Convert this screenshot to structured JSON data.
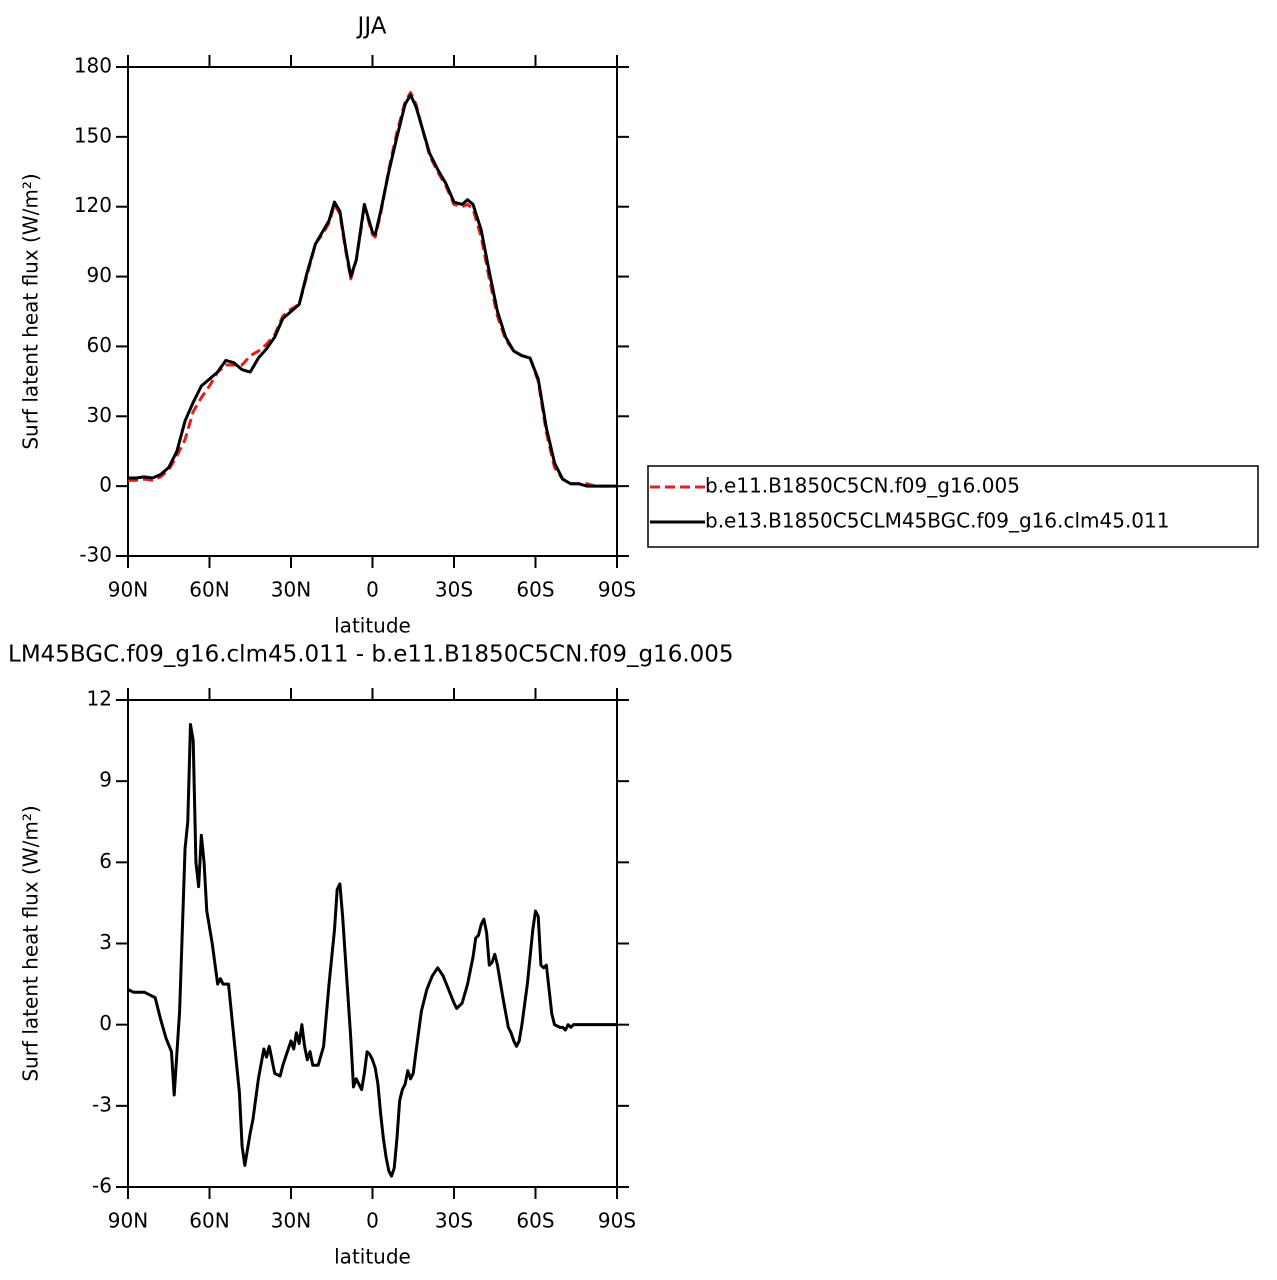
{
  "chart_data": [
    {
      "type": "line",
      "title": "JJA",
      "xlabel": "latitude",
      "ylabel": "Surf latent heat flux (W/m²)",
      "x": [
        90,
        87,
        84,
        81,
        78,
        75,
        72,
        69,
        66,
        63,
        60,
        57,
        54,
        51,
        48,
        45,
        42,
        39,
        36,
        33,
        30,
        27,
        24,
        21,
        18,
        16,
        14,
        12,
        10,
        8,
        6,
        4,
        3,
        1,
        0,
        -1,
        -3,
        -6,
        -9,
        -12,
        -14,
        -16,
        -18,
        -21,
        -24,
        -27,
        -30,
        -33,
        -35,
        -37,
        -40,
        -43,
        -46,
        -49,
        -52,
        -55,
        -58,
        -61,
        -64,
        -67,
        -70,
        -73,
        -76,
        -79,
        -82,
        -85,
        -88,
        -90
      ],
      "series": [
        {
          "name": "b.e11.B1850C5CN.f09_g16.005",
          "color": "#e0201b",
          "style": "dashed",
          "values": [
            2.5,
            2.5,
            3,
            2.5,
            4,
            7,
            13,
            20,
            32,
            38,
            43,
            49,
            52,
            52,
            52,
            56,
            58,
            61,
            65,
            73,
            76,
            78,
            91,
            104,
            109,
            113,
            121,
            117,
            102,
            89,
            97,
            112,
            121,
            112,
            108,
            107,
            117,
            136,
            152,
            165,
            169,
            164,
            155,
            142,
            135,
            129,
            121,
            120,
            121,
            119,
            107,
            89,
            73,
            63,
            58,
            56,
            55,
            45,
            23,
            8,
            3,
            1,
            1,
            1,
            0,
            0,
            0,
            0
          ]
        },
        {
          "name": "b.e13.B1850C5CLM45BGC.f09_g16.clm45.011",
          "color": "#000000",
          "style": "solid",
          "values": [
            3.5,
            3.5,
            4,
            3.5,
            5,
            8,
            15,
            28,
            36,
            43,
            46,
            49,
            54,
            53,
            50,
            49,
            55,
            59,
            64,
            72,
            75,
            78,
            92,
            104,
            110,
            114,
            122,
            118,
            103,
            90,
            97,
            113,
            121,
            113,
            109,
            108,
            118,
            135,
            150,
            164,
            168,
            163,
            155,
            143,
            136,
            130,
            122,
            121,
            123,
            121,
            110,
            92,
            75,
            64,
            58,
            56,
            55,
            46,
            25,
            10,
            3,
            1,
            1,
            0,
            0,
            0,
            0,
            0
          ]
        }
      ],
      "xlim": [
        90,
        -90
      ],
      "xticks": [
        {
          "value": 90,
          "label": "90N"
        },
        {
          "value": 60,
          "label": "60N"
        },
        {
          "value": 30,
          "label": "30N"
        },
        0,
        {
          "value": -30,
          "label": "30S"
        },
        {
          "value": -60,
          "label": "60S"
        },
        {
          "value": -90,
          "label": "90S"
        }
      ],
      "ylim": [
        -30,
        180
      ],
      "yticks": [
        -30,
        0,
        30,
        60,
        90,
        120,
        150,
        180
      ],
      "grid": false,
      "legend": "right"
    },
    {
      "type": "line",
      "title": "LM45BGC.f09_g16.clm45.011 - b.e11.B1850C5CN.f09_g16.005",
      "xlabel": "latitude",
      "ylabel": "Surf latent heat flux (W/m²)",
      "x": [
        90,
        88,
        86,
        84,
        82,
        80,
        78,
        76,
        74,
        73,
        71,
        69,
        68,
        67,
        66,
        65,
        64,
        63,
        62,
        61,
        59,
        57,
        56,
        55,
        53,
        51,
        49,
        48,
        47,
        45,
        44,
        42,
        40,
        39,
        38,
        37,
        36,
        34,
        33,
        31,
        30,
        29,
        28,
        27,
        26,
        25,
        24,
        23,
        22,
        20,
        18,
        16,
        14,
        13,
        12,
        11,
        10,
        9,
        8,
        7,
        6,
        5,
        4,
        3,
        2,
        1,
        0,
        -1,
        -2,
        -3,
        -4,
        -5,
        -6,
        -7,
        -8,
        -9,
        -10,
        -11,
        -12,
        -13,
        -14,
        -15,
        -16,
        -18,
        -20,
        -22,
        -24,
        -26,
        -28,
        -30,
        -31,
        -33,
        -35,
        -37,
        -38,
        -39,
        -40,
        -41,
        -42,
        -43,
        -44,
        -45,
        -46,
        -48,
        -50,
        -51,
        -52,
        -53,
        -54,
        -55,
        -57,
        -59,
        -60,
        -61,
        -62,
        -63,
        -64,
        -65,
        -66,
        -67,
        -69,
        -70,
        -71,
        -72,
        -73,
        -74,
        -76,
        -80,
        -85,
        -90
      ],
      "series": [
        {
          "color": "#000000",
          "style": "solid",
          "values": [
            1.3,
            1.2,
            1.2,
            1.2,
            1.1,
            1.0,
            0.2,
            -0.5,
            -1.0,
            -2.6,
            0.5,
            6.5,
            7.5,
            11.1,
            10.5,
            6,
            5.1,
            7.0,
            6.0,
            4.2,
            3.0,
            1.5,
            1.7,
            1.5,
            1.5,
            -0.5,
            -2.5,
            -4.5,
            -5.2,
            -4.0,
            -3.5,
            -2.0,
            -0.9,
            -1.2,
            -0.8,
            -1.3,
            -1.8,
            -1.9,
            -1.5,
            -0.9,
            -0.6,
            -0.9,
            -0.3,
            -0.7,
            0,
            -0.8,
            -1.3,
            -1.0,
            -1.5,
            -1.5,
            -0.8,
            1.5,
            3.5,
            5.0,
            5.2,
            4,
            2.5,
            1,
            -0.5,
            -2.3,
            -2.0,
            -2.2,
            -2.4,
            -1.8,
            -1.0,
            -1.1,
            -1.3,
            -1.6,
            -2.2,
            -3.3,
            -4.2,
            -4.9,
            -5.4,
            -5.6,
            -5.3,
            -4.2,
            -2.8,
            -2.4,
            -2.2,
            -1.7,
            -2.0,
            -1.8,
            -1.0,
            0.5,
            1.3,
            1.8,
            2.1,
            1.8,
            1.3,
            0.8,
            0.6,
            0.8,
            1.5,
            2.5,
            3.2,
            3.3,
            3.7,
            3.9,
            3.4,
            2.2,
            2.3,
            2.6,
            2.2,
            1.0,
            -0.1,
            -0.3,
            -0.6,
            -0.8,
            -0.6,
            0,
            1.5,
            3.5,
            4.2,
            4.0,
            2.2,
            2.1,
            2.2,
            1.3,
            0.4,
            0,
            -0.1,
            -0.1,
            -0.2,
            0,
            -0.1,
            0,
            0,
            0,
            0,
            0
          ]
        }
      ],
      "xlim": [
        90,
        -90
      ],
      "xticks": [
        {
          "value": 90,
          "label": "90N"
        },
        {
          "value": 60,
          "label": "60N"
        },
        {
          "value": 30,
          "label": "30N"
        },
        0,
        {
          "value": -30,
          "label": "30S"
        },
        {
          "value": -60,
          "label": "60S"
        },
        {
          "value": -90,
          "label": "90S"
        }
      ],
      "ylim": [
        -6,
        12
      ],
      "yticks": [
        -6,
        -3,
        0,
        3,
        6,
        9,
        12
      ],
      "grid": false
    }
  ]
}
